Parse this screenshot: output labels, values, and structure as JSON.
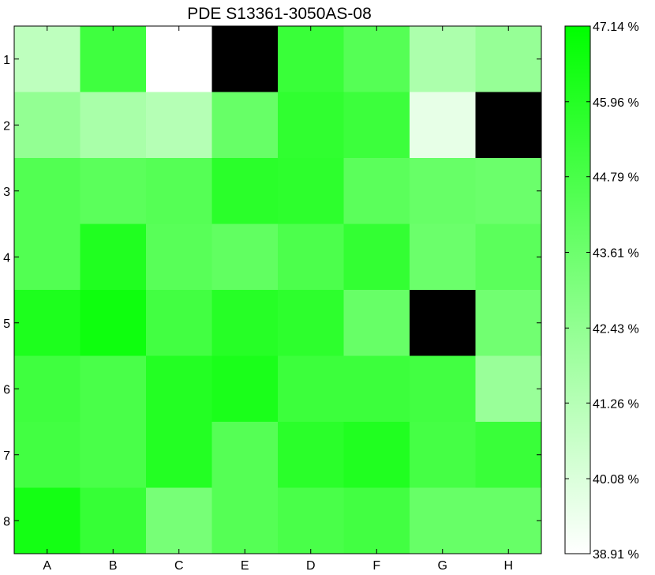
{
  "chart_data": {
    "type": "heatmap",
    "title": "PDE S13361-3050AS-08",
    "xlabel": "",
    "ylabel": "",
    "x_categories": [
      "A",
      "B",
      "C",
      "E",
      "D",
      "F",
      "G",
      "H"
    ],
    "y_categories": [
      "1",
      "2",
      "3",
      "4",
      "5",
      "6",
      "7",
      "8"
    ],
    "value_unit": "%",
    "color_range": [
      38.91,
      47.14
    ],
    "colormap": {
      "low": "#ffffff",
      "high": "#00ff00"
    },
    "missing_color": "#000000",
    "colorbar_ticks": [
      "47.14 %",
      "45.96 %",
      "44.79 %",
      "43.61 %",
      "42.43 %",
      "41.26 %",
      "40.08 %",
      "38.91 %"
    ],
    "colorbar_tick_values": [
      47.14,
      45.96,
      44.79,
      43.61,
      42.43,
      41.26,
      40.08,
      38.91
    ],
    "values": [
      [
        41.0,
        45.1,
        38.91,
        null,
        45.3,
        44.4,
        41.6,
        42.3
      ],
      [
        42.4,
        41.7,
        41.3,
        43.8,
        45.6,
        45.2,
        39.7,
        null
      ],
      [
        44.5,
        44.2,
        44.4,
        45.8,
        45.7,
        44.2,
        43.8,
        43.7
      ],
      [
        44.5,
        46.1,
        44.3,
        44.0,
        44.7,
        45.5,
        43.7,
        44.2
      ],
      [
        46.2,
        46.7,
        45.0,
        45.9,
        45.7,
        43.8,
        null,
        43.5
      ],
      [
        45.1,
        44.8,
        46.0,
        46.3,
        45.2,
        45.2,
        45.0,
        42.2
      ],
      [
        45.0,
        44.8,
        46.0,
        44.4,
        45.8,
        46.1,
        44.9,
        45.3
      ],
      [
        46.5,
        45.4,
        43.3,
        44.4,
        44.8,
        45.0,
        43.8,
        43.8
      ]
    ]
  }
}
